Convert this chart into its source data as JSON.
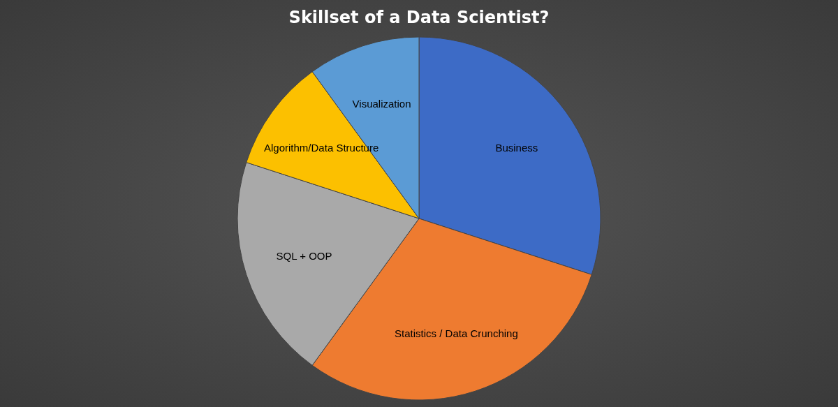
{
  "chart_data": {
    "type": "pie",
    "title": "Skillset of a Data Scientist?",
    "categories": [
      "Business",
      "Statistics / Data Crunching",
      "SQL + OOP",
      "Algorithm/Data Structure",
      "Visualization"
    ],
    "values": [
      30,
      30,
      20,
      10,
      10
    ],
    "colors": [
      "#3d6bc6",
      "#ee7b30",
      "#a9a9a9",
      "#fcc000",
      "#5b9bd5"
    ],
    "legend": false
  }
}
